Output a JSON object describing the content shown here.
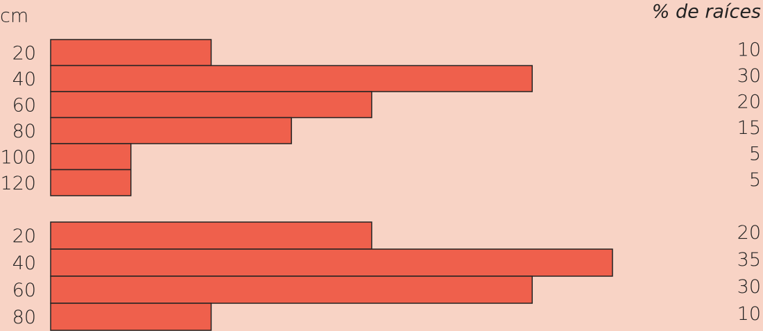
{
  "chart_data": [
    {
      "type": "bar",
      "orientation": "horizontal",
      "y_label": "cm",
      "value_title": "% de raíces",
      "categories": [
        "20",
        "40",
        "60",
        "80",
        "100",
        "120"
      ],
      "values": [
        10,
        30,
        20,
        15,
        5,
        5
      ],
      "color": "#ef604c"
    },
    {
      "type": "bar",
      "orientation": "horizontal",
      "categories": [
        "20",
        "40",
        "60",
        "80"
      ],
      "values": [
        20,
        35,
        30,
        10
      ],
      "color": "#ef604c"
    }
  ]
}
